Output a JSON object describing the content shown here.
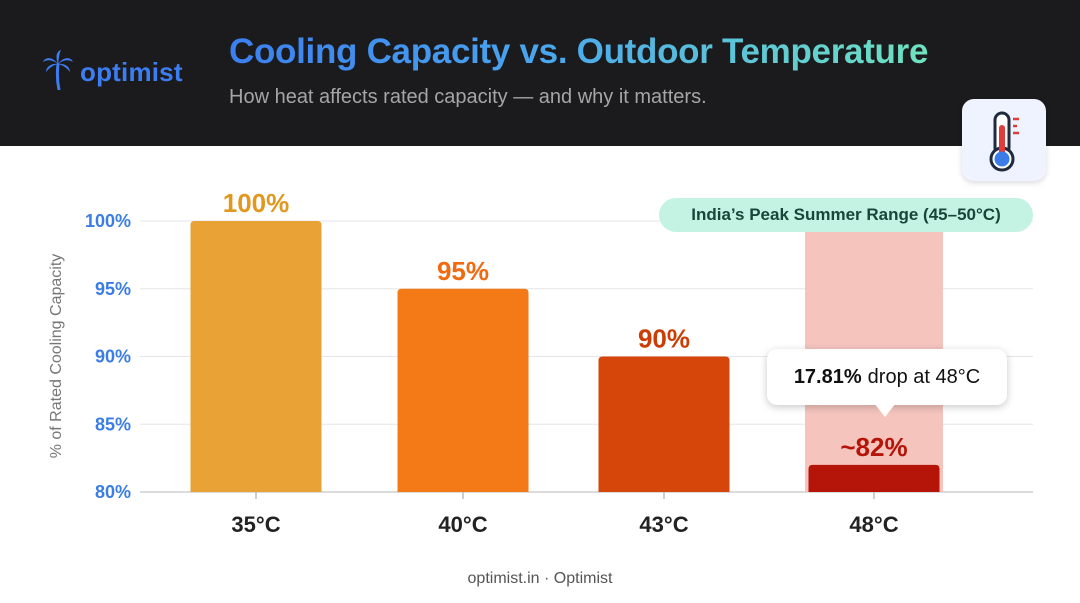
{
  "brand": {
    "name": "optimist"
  },
  "header": {
    "title": "Cooling Capacity vs. Outdoor Temperature",
    "subtitle": "How heat affects rated capacity — and why it matters."
  },
  "icons": {
    "brand": "palm-tree-icon",
    "header": "thermometer-icon"
  },
  "annotations": {
    "peak_range": "India’s Peak Summer Range (45–50°C)",
    "callout_value": "17.81%",
    "callout_text": "drop at 48°C"
  },
  "footer": {
    "text": "optimist.in · Optimist"
  },
  "chart_data": {
    "type": "bar",
    "categories": [
      "35°C",
      "40°C",
      "43°C",
      "48°C"
    ],
    "values": [
      100,
      95,
      90,
      82
    ],
    "data_labels": [
      "100%",
      "95%",
      "90%",
      "~82%"
    ],
    "colors": [
      "#e9a236",
      "#f47a18",
      "#d6460b",
      "#b51408"
    ],
    "label_colors": [
      "#e2981f",
      "#f06a10",
      "#cc3d05",
      "#b51408"
    ],
    "ylabel": "% of Rated Cooling Capacity",
    "xlabel": "",
    "yticks": [
      80,
      85,
      90,
      95,
      100
    ],
    "ytick_labels": [
      "80%",
      "85%",
      "90%",
      "95%",
      "100%"
    ],
    "ylim": [
      80,
      100
    ],
    "grid": true,
    "highlight_category": "48°C",
    "highlight_color": "#f4c4bd"
  }
}
